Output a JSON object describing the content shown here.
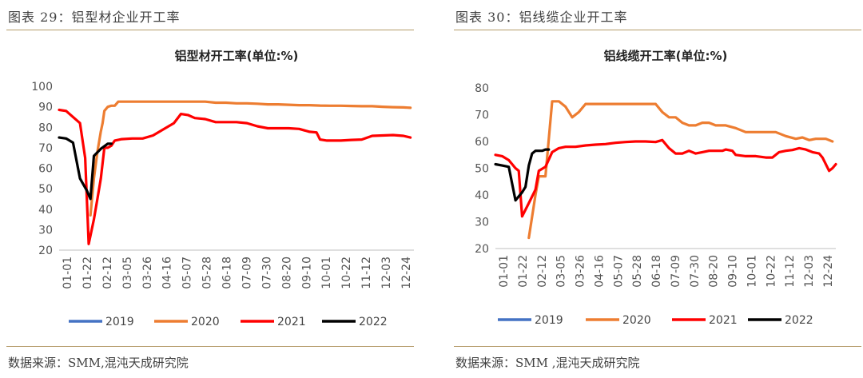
{
  "charts": [
    {
      "caption": "图表 29：铝型材企业开工率",
      "source": "数据来源：SMM,混沌天成研究院"
    },
    {
      "caption": "图表 30：铝线缆企业开工率",
      "source": "数据来源：SMM ,混沌天成研究院"
    }
  ],
  "chart_data": [
    {
      "type": "line",
      "title": "铝型材开工率(单位:%)",
      "xlabel": "",
      "ylabel": "",
      "ylim": [
        20,
        100
      ],
      "yticks": [
        20,
        30,
        40,
        50,
        60,
        70,
        80,
        90,
        100
      ],
      "xticks": [
        "01-01",
        "01-22",
        "02-12",
        "03-05",
        "03-26",
        "04-16",
        "05-07",
        "05-28",
        "06-18",
        "07-09",
        "07-30",
        "08-20",
        "09-10",
        "10-01",
        "10-22",
        "11-12",
        "12-03",
        "12-24"
      ],
      "legend": "bottom",
      "series": [
        {
          "name": "2019",
          "color": "#4472c4",
          "points": []
        },
        {
          "name": "2020",
          "color": "#ed7d31",
          "points": [
            [
              9,
              37
            ],
            [
              10,
              55
            ],
            [
              11,
              68
            ],
            [
              12,
              78
            ],
            [
              12.5,
              82
            ],
            [
              13,
              88
            ],
            [
              14,
              90
            ],
            [
              15,
              90.5
            ],
            [
              16,
              90.5
            ],
            [
              17,
              92.5
            ],
            [
              18,
              92.5
            ],
            [
              21,
              92.5
            ],
            [
              24,
              92.5
            ],
            [
              27,
              92.5
            ],
            [
              30,
              92.5
            ],
            [
              33,
              92.5
            ],
            [
              36,
              92.5
            ],
            [
              39,
              92.5
            ],
            [
              42,
              92.5
            ],
            [
              45,
              92
            ],
            [
              48,
              92
            ],
            [
              51,
              91.7
            ],
            [
              54,
              91.7
            ],
            [
              57,
              91.5
            ],
            [
              60,
              91.2
            ],
            [
              63,
              91.2
            ],
            [
              66,
              91
            ],
            [
              69,
              90.8
            ],
            [
              72,
              90.8
            ],
            [
              75,
              90.6
            ],
            [
              78,
              90.5
            ],
            [
              81,
              90.5
            ],
            [
              84,
              90.4
            ],
            [
              87,
              90.3
            ],
            [
              90,
              90.3
            ],
            [
              93,
              90
            ],
            [
              96,
              89.8
            ],
            [
              99,
              89.7
            ],
            [
              101,
              89.5
            ]
          ]
        },
        {
          "name": "2021",
          "color": "#ff0000",
          "points": [
            [
              0,
              88.5
            ],
            [
              2,
              88
            ],
            [
              4,
              85
            ],
            [
              6,
              82
            ],
            [
              7.5,
              65
            ],
            [
              8.5,
              23
            ],
            [
              10,
              35
            ],
            [
              11,
              45
            ],
            [
              12,
              55
            ],
            [
              13,
              70
            ],
            [
              14,
              70
            ],
            [
              15,
              71
            ],
            [
              16,
              73.5
            ],
            [
              18,
              74.2
            ],
            [
              21,
              74.5
            ],
            [
              24,
              74.5
            ],
            [
              27,
              76
            ],
            [
              30,
              79
            ],
            [
              33,
              82
            ],
            [
              35,
              86.5
            ],
            [
              37,
              86
            ],
            [
              39,
              84.5
            ],
            [
              42,
              84
            ],
            [
              45,
              82.5
            ],
            [
              48,
              82.5
            ],
            [
              51,
              82.5
            ],
            [
              54,
              82
            ],
            [
              57,
              80.5
            ],
            [
              60,
              79.5
            ],
            [
              63,
              79.5
            ],
            [
              66,
              79.5
            ],
            [
              69,
              79.2
            ],
            [
              72,
              77.8
            ],
            [
              74,
              77.5
            ],
            [
              75,
              74
            ],
            [
              77,
              73.5
            ],
            [
              81,
              73.5
            ],
            [
              84,
              73.8
            ],
            [
              87,
              74
            ],
            [
              90,
              75.8
            ],
            [
              93,
              76
            ],
            [
              96,
              76.2
            ],
            [
              99,
              75.8
            ],
            [
              101,
              75
            ]
          ]
        },
        {
          "name": "2022",
          "color": "#000000",
          "points": [
            [
              0,
              75
            ],
            [
              2,
              74.5
            ],
            [
              4,
              72.5
            ],
            [
              6,
              55
            ],
            [
              8,
              49
            ],
            [
              9,
              45
            ],
            [
              10,
              66
            ],
            [
              12,
              69.5
            ],
            [
              14,
              72
            ],
            [
              15,
              72
            ]
          ]
        }
      ]
    },
    {
      "type": "line",
      "title": "铝线缆开工率(单位:%)",
      "xlabel": "",
      "ylabel": "",
      "ylim": [
        20,
        80
      ],
      "yticks": [
        20,
        30,
        40,
        50,
        60,
        70,
        80
      ],
      "xticks": [
        "01-01",
        "01-22",
        "02-12",
        "03-05",
        "03-26",
        "04-16",
        "05-07",
        "05-28",
        "06-18",
        "07-09",
        "07-30",
        "08-20",
        "09-10",
        "10-01",
        "10-22",
        "11-12",
        "12-03",
        "12-24"
      ],
      "legend": "bottom",
      "series": [
        {
          "name": "2019",
          "color": "#4472c4",
          "points": []
        },
        {
          "name": "2020",
          "color": "#ed7d31",
          "points": [
            [
              10,
              24
            ],
            [
              12,
              40
            ],
            [
              13,
              47
            ],
            [
              15,
              47
            ],
            [
              17,
              75
            ],
            [
              19,
              75
            ],
            [
              21,
              73
            ],
            [
              23,
              69
            ],
            [
              25,
              71
            ],
            [
              27,
              74
            ],
            [
              30,
              74
            ],
            [
              33,
              74
            ],
            [
              36,
              74
            ],
            [
              39,
              74
            ],
            [
              42,
              74
            ],
            [
              45,
              74
            ],
            [
              48,
              74
            ],
            [
              50,
              71
            ],
            [
              52,
              69
            ],
            [
              54,
              69
            ],
            [
              56,
              67
            ],
            [
              58,
              66
            ],
            [
              60,
              66
            ],
            [
              62,
              67
            ],
            [
              64,
              67
            ],
            [
              66,
              66
            ],
            [
              69,
              66
            ],
            [
              72,
              65
            ],
            [
              75,
              63.5
            ],
            [
              78,
              63.5
            ],
            [
              81,
              63.5
            ],
            [
              84,
              63.5
            ],
            [
              87,
              62
            ],
            [
              90,
              61
            ],
            [
              92,
              61.5
            ],
            [
              94,
              60.5
            ],
            [
              96,
              61
            ],
            [
              99,
              61
            ],
            [
              101,
              60
            ]
          ]
        },
        {
          "name": "2021",
          "color": "#ff0000",
          "points": [
            [
              0,
              55
            ],
            [
              2,
              54.5
            ],
            [
              4,
              53
            ],
            [
              6,
              50
            ],
            [
              7,
              49
            ],
            [
              8,
              32
            ],
            [
              10,
              37
            ],
            [
              12,
              42
            ],
            [
              13,
              49
            ],
            [
              15,
              50.5
            ],
            [
              17,
              56
            ],
            [
              19,
              57.5
            ],
            [
              21,
              58
            ],
            [
              24,
              58
            ],
            [
              27,
              58.5
            ],
            [
              30,
              58.8
            ],
            [
              33,
              59
            ],
            [
              36,
              59.5
            ],
            [
              39,
              59.8
            ],
            [
              42,
              60
            ],
            [
              45,
              60
            ],
            [
              48,
              59.8
            ],
            [
              50,
              60.5
            ],
            [
              52,
              57.5
            ],
            [
              54,
              55.5
            ],
            [
              56,
              55.5
            ],
            [
              58,
              56.5
            ],
            [
              60,
              55.5
            ],
            [
              62,
              56
            ],
            [
              64,
              56.5
            ],
            [
              66,
              56.5
            ],
            [
              68,
              56.5
            ],
            [
              69,
              57
            ],
            [
              71,
              56.5
            ],
            [
              72,
              55
            ],
            [
              75,
              54.5
            ],
            [
              78,
              54.5
            ],
            [
              81,
              54
            ],
            [
              83,
              54
            ],
            [
              85,
              56
            ],
            [
              87,
              56.5
            ],
            [
              89,
              56.8
            ],
            [
              91,
              57.5
            ],
            [
              93,
              57
            ],
            [
              95,
              56
            ],
            [
              97,
              55.5
            ],
            [
              98,
              54
            ],
            [
              100,
              49
            ],
            [
              101,
              50
            ],
            [
              102,
              51.5
            ]
          ]
        },
        {
          "name": "2022",
          "color": "#000000",
          "points": [
            [
              0,
              51.5
            ],
            [
              2,
              51
            ],
            [
              4,
              50.5
            ],
            [
              6,
              38
            ],
            [
              8,
              41
            ],
            [
              9,
              43
            ],
            [
              10,
              51
            ],
            [
              11,
              55.5
            ],
            [
              12,
              56.5
            ],
            [
              14,
              56.5
            ],
            [
              15,
              57
            ],
            [
              16,
              57
            ]
          ]
        }
      ]
    }
  ]
}
